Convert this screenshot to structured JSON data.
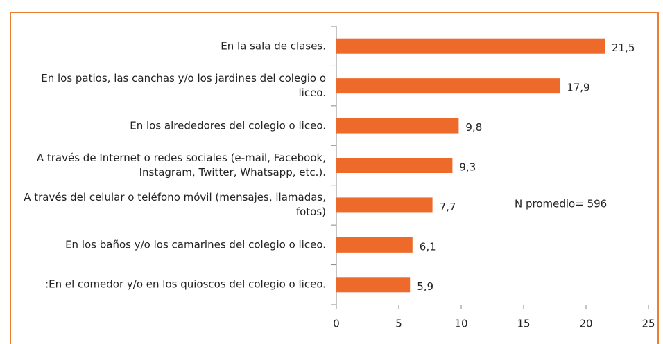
{
  "chart_data": {
    "type": "barh",
    "categories": [
      "En la sala de clases.",
      "En los patios, las canchas y/o los jardines del colegio o liceo.",
      "En los alrededores del colegio o liceo.",
      "A través de Internet o redes sociales (e-mail, Facebook, Instagram, Twitter, Whatsapp, etc.).",
      "A través del celular o teléfono móvil (mensajes, llamadas, fotos)",
      "En los baños y/o los camarines del colegio o liceo.",
      ":En el comedor y/o en los quioscos del colegio o liceo."
    ],
    "values": [
      21.5,
      17.9,
      9.8,
      9.3,
      7.7,
      6.1,
      5.9
    ],
    "value_labels": [
      "21,5",
      "17,9",
      "9,8",
      "9,3",
      "7,7",
      "6,1",
      "5,9"
    ],
    "color": "#ed6a2a",
    "xlim": [
      0,
      25
    ],
    "xticks": [
      0,
      5,
      10,
      15,
      20,
      25
    ],
    "annotation": "N promedio= 596"
  }
}
